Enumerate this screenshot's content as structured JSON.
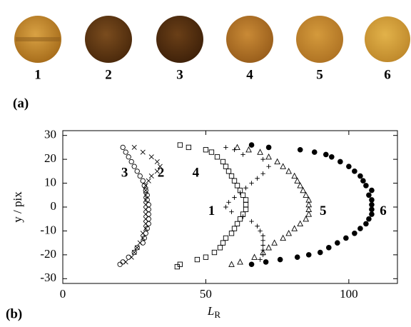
{
  "chart_data": {
    "type": "scatter",
    "panel_labels": [
      "(a)",
      "(b)"
    ],
    "xlabel_main": "L",
    "xlabel_sub": "R",
    "ylabel": "y / pix",
    "xlim": [
      0,
      117
    ],
    "ylim": [
      -32,
      32
    ],
    "xticks": [
      0,
      50,
      100
    ],
    "yticks": [
      -30,
      -20,
      -10,
      0,
      10,
      20,
      30
    ],
    "series": [
      {
        "name": "1",
        "marker": "plus",
        "color": "#000000",
        "x": [
          57,
          60,
          63,
          70,
          72,
          70,
          68,
          66,
          64,
          62,
          60,
          58,
          57,
          59,
          63,
          66,
          68,
          69,
          70,
          70,
          70,
          70,
          70,
          69,
          66
        ],
        "values": [
          25,
          24,
          22,
          20,
          17,
          14,
          12,
          10,
          8,
          6,
          4,
          2,
          0,
          -2,
          -4,
          -6,
          -8,
          -10,
          -12,
          -14,
          -16,
          -18,
          -20,
          -22,
          -24
        ]
      },
      {
        "name": "2",
        "marker": "cross",
        "color": "#000000",
        "x": [
          25,
          28,
          31,
          33,
          34,
          33,
          31,
          30,
          29,
          29,
          29,
          29,
          29,
          29,
          29,
          29,
          29,
          29,
          28,
          28,
          27,
          26,
          25,
          24,
          22
        ],
        "values": [
          25,
          23,
          21,
          19,
          17,
          15,
          13,
          11,
          9,
          7,
          5,
          3,
          1,
          -1,
          -3,
          -5,
          -7,
          -9,
          -11,
          -13,
          -15,
          -17,
          -19,
          -21,
          -23
        ]
      },
      {
        "name": "3",
        "marker": "circle-open",
        "color": "#000000",
        "x": [
          21,
          22,
          23,
          24,
          25,
          26,
          27,
          28,
          28.5,
          29,
          29.5,
          29.5,
          30,
          30,
          30,
          30,
          30,
          29.5,
          29,
          28.5,
          28,
          26,
          25,
          23,
          21,
          20
        ],
        "values": [
          25,
          23,
          21,
          19,
          17,
          15,
          13,
          11,
          9,
          7,
          5,
          3,
          1,
          -1,
          -3,
          -5,
          -7,
          -9,
          -11,
          -13,
          -15,
          -17,
          -19,
          -21,
          -23,
          -24
        ]
      },
      {
        "name": "4",
        "marker": "square-open",
        "color": "#000000",
        "x": [
          41,
          44,
          50,
          52,
          54,
          56,
          57,
          58,
          59,
          60,
          61,
          62,
          63,
          64,
          64,
          64,
          63,
          62,
          61,
          60,
          59,
          57,
          56,
          55,
          53,
          50,
          47,
          41,
          40
        ],
        "values": [
          26,
          25,
          24,
          23,
          21,
          19,
          17,
          15,
          13,
          11,
          9,
          7,
          5,
          3,
          1,
          -1,
          -3,
          -5,
          -7,
          -9,
          -11,
          -13,
          -15,
          -17,
          -19,
          -21,
          -22,
          -24,
          -25
        ]
      },
      {
        "name": "5",
        "marker": "triangle-open",
        "color": "#000000",
        "x": [
          61,
          65,
          69,
          72,
          75,
          77,
          79,
          81,
          82,
          83,
          84,
          85,
          86,
          86,
          86,
          86,
          85,
          83,
          81,
          79,
          77,
          74,
          72,
          70,
          67,
          62,
          59
        ],
        "values": [
          25,
          24,
          23,
          21,
          19,
          17,
          15,
          13,
          11,
          9,
          7,
          5,
          3,
          1,
          -1,
          -3,
          -5,
          -7,
          -9,
          -11,
          -13,
          -15,
          -17,
          -19,
          -21,
          -23,
          -24
        ]
      },
      {
        "name": "6",
        "marker": "circle-filled",
        "color": "#000000",
        "x": [
          66,
          72,
          83,
          88,
          92,
          94,
          97,
          100,
          102,
          104,
          105,
          106,
          108,
          107,
          108,
          108,
          108,
          108,
          107,
          106,
          104,
          102,
          99,
          96,
          93,
          90,
          86,
          82,
          76,
          71,
          66
        ],
        "values": [
          26,
          25,
          24,
          23,
          22,
          21,
          19,
          17,
          15,
          13,
          11,
          9,
          7,
          5,
          3,
          1,
          -1,
          -3,
          -5,
          -7,
          -9,
          -11,
          -13,
          -15,
          -17,
          -19,
          -20,
          -21,
          -22,
          -23,
          -24
        ]
      }
    ]
  }
}
